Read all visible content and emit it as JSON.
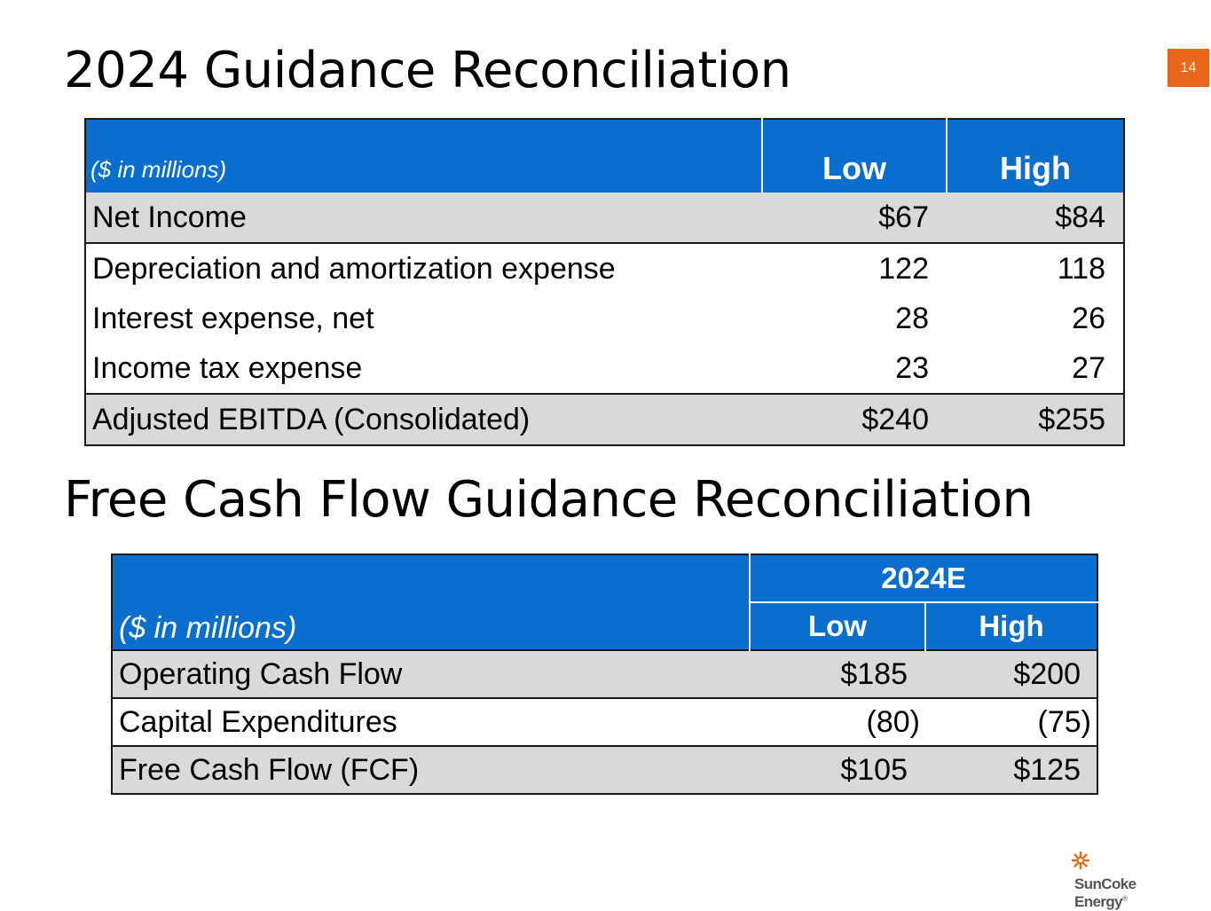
{
  "page_number": "14",
  "section1": {
    "title": "2024 Guidance Reconciliation",
    "table": {
      "unit_label": "($ in millions)",
      "headers": [
        "Low",
        "High"
      ],
      "rows": [
        {
          "label": "Net Income",
          "low": "$67",
          "high": "$84"
        },
        {
          "label": "Depreciation and amortization expense",
          "low": "122",
          "high": "118"
        },
        {
          "label": "Interest expense, net",
          "low": "28",
          "high": "26"
        },
        {
          "label": "Income tax expense",
          "low": "23",
          "high": "27"
        },
        {
          "label": "Adjusted EBITDA (Consolidated)",
          "low": "$240",
          "high": "$255"
        }
      ]
    }
  },
  "section2": {
    "title": "Free Cash Flow Guidance Reconciliation",
    "table": {
      "unit_label": "($ in millions)",
      "group_header": "2024E",
      "headers": [
        "Low",
        "High"
      ],
      "rows": [
        {
          "label": "Operating Cash Flow",
          "low": "$185",
          "high": "$200"
        },
        {
          "label": "Capital Expenditures",
          "low": "(80)",
          "high": "(75)"
        },
        {
          "label": "Free Cash Flow (FCF)",
          "low": "$105",
          "high": "$125"
        }
      ]
    }
  },
  "logo": {
    "text": "SunCoke Energy",
    "trademark": "®",
    "icon": "sun-icon",
    "accent_color": "#E8671A"
  },
  "colors": {
    "header_blue": "#0A6ECE",
    "row_shade": "#D9D9D9",
    "badge_orange": "#E8671A"
  }
}
